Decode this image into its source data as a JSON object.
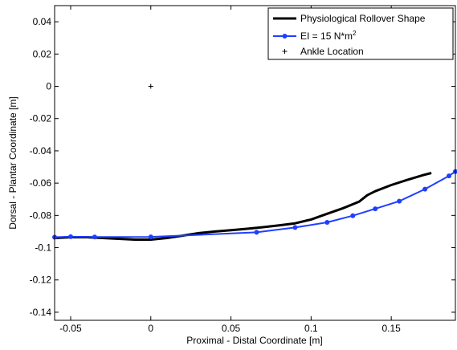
{
  "chart_data": {
    "type": "line",
    "title": "",
    "xlabel": "Proximal - Distal Coordinate [m]",
    "ylabel": "Dorsal - Plantar Coordinate [m]",
    "xlim": [
      -0.06,
      0.19
    ],
    "ylim": [
      -0.145,
      0.05
    ],
    "xticks": [
      -0.05,
      0,
      0.05,
      0.1,
      0.15
    ],
    "xtick_labels": [
      "-0.05",
      "0",
      "0.05",
      "0.1",
      "0.15"
    ],
    "yticks": [
      0.04,
      0.02,
      0,
      -0.02,
      -0.04,
      -0.06,
      -0.08,
      -0.1,
      -0.12,
      -0.14
    ],
    "ytick_labels": [
      "0.04",
      "0.02",
      "0",
      "-0.02",
      "-0.04",
      "-0.06",
      "-0.08",
      "-0.1",
      "-0.12",
      "-0.14"
    ],
    "grid": false,
    "legend_position": "top-right",
    "series": [
      {
        "name": "Physiological Rollover Shape",
        "color": "#000000",
        "marker": "none",
        "x": [
          -0.06,
          -0.05,
          -0.04,
          -0.03,
          -0.02,
          -0.01,
          0,
          0.01,
          0.02,
          0.03,
          0.04,
          0.05,
          0.06,
          0.07,
          0.08,
          0.09,
          0.1,
          0.11,
          0.12,
          0.13,
          0.135,
          0.14,
          0.15,
          0.16,
          0.17,
          0.175
        ],
        "y": [
          -0.094,
          -0.0935,
          -0.0935,
          -0.094,
          -0.0945,
          -0.095,
          -0.095,
          -0.094,
          -0.0925,
          -0.091,
          -0.09,
          -0.0892,
          -0.0883,
          -0.0873,
          -0.0862,
          -0.0849,
          -0.0825,
          -0.079,
          -0.0755,
          -0.0715,
          -0.0675,
          -0.065,
          -0.0612,
          -0.058,
          -0.055,
          -0.0537
        ]
      },
      {
        "name": "EI = 15 N*m²",
        "color": "#1f3fff",
        "marker": "circle",
        "x": [
          -0.06,
          -0.05,
          -0.035,
          0,
          0.066,
          0.09,
          0.11,
          0.126,
          0.14,
          0.155,
          0.171,
          0.186,
          0.19
        ],
        "y": [
          -0.0935,
          -0.0932,
          -0.0934,
          -0.0933,
          -0.0905,
          -0.0875,
          -0.0843,
          -0.0802,
          -0.0759,
          -0.0712,
          -0.0637,
          -0.0555,
          -0.0528
        ]
      },
      {
        "name": "Ankle Location",
        "color": "#000000",
        "marker": "plus",
        "x": [
          0
        ],
        "y": [
          0
        ]
      }
    ]
  },
  "legend": {
    "entries": [
      {
        "label": "Physiological Rollover Shape"
      },
      {
        "label_main": "EI = 15 N*m",
        "label_sup": "2"
      },
      {
        "label": "Ankle Location"
      }
    ]
  }
}
